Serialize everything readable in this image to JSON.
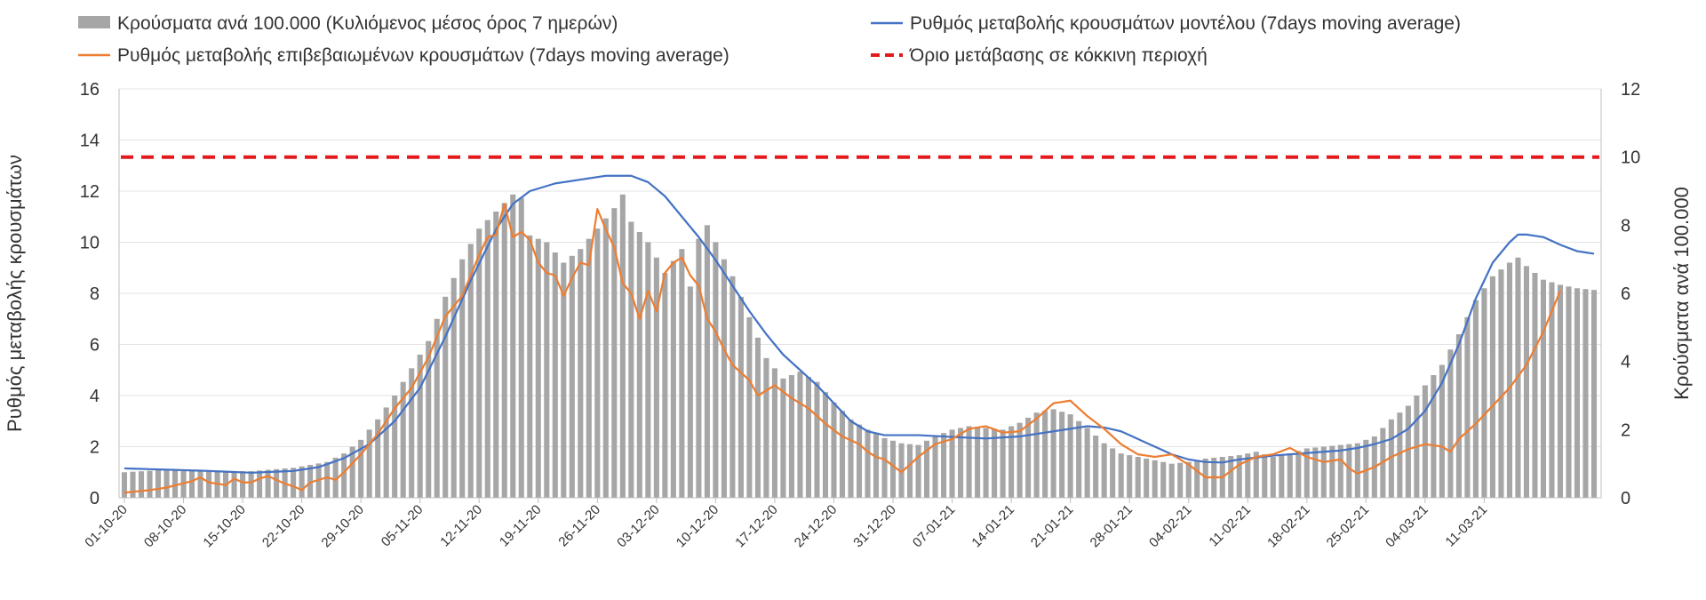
{
  "chart_data": {
    "type": "bar+line",
    "xlabel": "",
    "ylabel": "Ρυθμός μεταβολής κρουσμάτων",
    "y2label": "Κρούσματα ανά 100.000",
    "ylim": [
      0,
      16
    ],
    "y2lim": [
      0,
      12
    ],
    "y_ticks": [
      "0",
      "2",
      "4",
      "6",
      "8",
      "10",
      "12",
      "14",
      "16"
    ],
    "y2_ticks": [
      "0",
      "2",
      "4",
      "6",
      "8",
      "10",
      "12"
    ],
    "x_start": "2020-10-01",
    "x_tick_labels": [
      "01-10-20",
      "08-10-20",
      "15-10-20",
      "22-10-20",
      "29-10-20",
      "05-11-20",
      "12-11-20",
      "19-11-20",
      "26-11-20",
      "03-12-20",
      "10-12-20",
      "17-12-20",
      "24-12-20",
      "31-12-20",
      "07-01-21",
      "14-01-21",
      "21-01-21",
      "28-01-21",
      "04-02-21",
      "11-02-21",
      "18-02-21",
      "25-02-21",
      "04-03-21",
      "11-03-21"
    ],
    "grid": "horizontal",
    "legend_position": "top",
    "legend": [
      {
        "label": "Κρούσματα ανά 100.000 (Κυλιόμενος μέσος όρος 7 ημερών)",
        "type": "bar",
        "color": "#a6a6a6"
      },
      {
        "label": "Ρυθμός μεταβολής κρουσμάτων μοντέλου (7days moving average)",
        "type": "line",
        "color": "#4472c4"
      },
      {
        "label": "Ρυθμός μεταβολής επιβεβαιωμένων κρουσμάτων (7days moving average)",
        "type": "line",
        "color": "#ed7d31"
      },
      {
        "label": "Όριο μετάβασης σε κόκκινη περιοχή",
        "type": "dashed",
        "color": "#e31a1c"
      }
    ],
    "series": [
      {
        "name": "Κρούσματα ανά 100.000 (Κυλιόμενος μέσος όρος 7 ημερών)",
        "type": "bar",
        "axis": "right",
        "color": "#a6a6a6",
        "key_points": [
          [
            0,
            0.75
          ],
          [
            5,
            0.82
          ],
          [
            10,
            0.78
          ],
          [
            15,
            0.78
          ],
          [
            20,
            0.88
          ],
          [
            24,
            1.05
          ],
          [
            26,
            1.3
          ],
          [
            28,
            1.7
          ],
          [
            30,
            2.3
          ],
          [
            32,
            3.0
          ],
          [
            34,
            3.8
          ],
          [
            36,
            4.6
          ],
          [
            38,
            5.9
          ],
          [
            40,
            7.0
          ],
          [
            42,
            7.9
          ],
          [
            44,
            8.4
          ],
          [
            46,
            8.9
          ],
          [
            47,
            8.8
          ],
          [
            48,
            7.7
          ],
          [
            50,
            7.5
          ],
          [
            52,
            6.9
          ],
          [
            54,
            7.3
          ],
          [
            56,
            7.9
          ],
          [
            58,
            8.5
          ],
          [
            59,
            8.9
          ],
          [
            60,
            8.1
          ],
          [
            62,
            7.5
          ],
          [
            64,
            6.6
          ],
          [
            66,
            7.3
          ],
          [
            67,
            6.2
          ],
          [
            68,
            7.6
          ],
          [
            69,
            8.0
          ],
          [
            70,
            7.5
          ],
          [
            72,
            6.5
          ],
          [
            74,
            5.3
          ],
          [
            76,
            4.1
          ],
          [
            78,
            3.5
          ],
          [
            80,
            3.7
          ],
          [
            82,
            3.4
          ],
          [
            84,
            2.8
          ],
          [
            86,
            2.3
          ],
          [
            88,
            2.0
          ],
          [
            90,
            1.75
          ],
          [
            92,
            1.6
          ],
          [
            94,
            1.55
          ],
          [
            96,
            1.8
          ],
          [
            98,
            2.0
          ],
          [
            100,
            2.1
          ],
          [
            102,
            2.05
          ],
          [
            104,
            2.0
          ],
          [
            106,
            2.2
          ],
          [
            108,
            2.5
          ],
          [
            110,
            2.6
          ],
          [
            112,
            2.45
          ],
          [
            114,
            2.05
          ],
          [
            116,
            1.6
          ],
          [
            118,
            1.3
          ],
          [
            120,
            1.2
          ],
          [
            122,
            1.1
          ],
          [
            124,
            1.0
          ],
          [
            126,
            1.05
          ],
          [
            128,
            1.15
          ],
          [
            130,
            1.2
          ],
          [
            132,
            1.25
          ],
          [
            134,
            1.35
          ],
          [
            136,
            1.2
          ],
          [
            138,
            1.3
          ],
          [
            140,
            1.45
          ],
          [
            142,
            1.5
          ],
          [
            144,
            1.55
          ],
          [
            146,
            1.6
          ],
          [
            148,
            1.8
          ],
          [
            150,
            2.3
          ],
          [
            152,
            2.7
          ],
          [
            154,
            3.3
          ],
          [
            156,
            3.9
          ],
          [
            158,
            4.8
          ],
          [
            160,
            5.8
          ],
          [
            162,
            6.5
          ],
          [
            164,
            6.9
          ],
          [
            165,
            7.05
          ],
          [
            166,
            6.8
          ],
          [
            168,
            6.4
          ],
          [
            170,
            6.25
          ],
          [
            172,
            6.15
          ],
          [
            174,
            6.1
          ]
        ]
      },
      {
        "name": "Ρυθμός μεταβολής κρουσμάτων μοντέλου (7days moving average)",
        "type": "line",
        "axis": "left",
        "color": "#4472c4",
        "key_points": [
          [
            0,
            1.15
          ],
          [
            10,
            1.05
          ],
          [
            15,
            0.98
          ],
          [
            20,
            1.05
          ],
          [
            23,
            1.2
          ],
          [
            26,
            1.55
          ],
          [
            29,
            2.1
          ],
          [
            32,
            3.0
          ],
          [
            35,
            4.3
          ],
          [
            38,
            6.3
          ],
          [
            41,
            8.5
          ],
          [
            44,
            10.5
          ],
          [
            46,
            11.5
          ],
          [
            48,
            12.0
          ],
          [
            51,
            12.3
          ],
          [
            54,
            12.45
          ],
          [
            57,
            12.6
          ],
          [
            60,
            12.6
          ],
          [
            62,
            12.35
          ],
          [
            64,
            11.8
          ],
          [
            66,
            11.0
          ],
          [
            68,
            10.2
          ],
          [
            70,
            9.3
          ],
          [
            72,
            8.3
          ],
          [
            74,
            7.3
          ],
          [
            76,
            6.4
          ],
          [
            78,
            5.6
          ],
          [
            80,
            5.0
          ],
          [
            82,
            4.4
          ],
          [
            84,
            3.7
          ],
          [
            86,
            3.0
          ],
          [
            88,
            2.6
          ],
          [
            90,
            2.45
          ],
          [
            94,
            2.45
          ],
          [
            98,
            2.38
          ],
          [
            102,
            2.32
          ],
          [
            106,
            2.4
          ],
          [
            110,
            2.6
          ],
          [
            114,
            2.8
          ],
          [
            116,
            2.75
          ],
          [
            118,
            2.6
          ],
          [
            120,
            2.3
          ],
          [
            122,
            2.0
          ],
          [
            124,
            1.7
          ],
          [
            126,
            1.5
          ],
          [
            128,
            1.4
          ],
          [
            130,
            1.38
          ],
          [
            132,
            1.5
          ],
          [
            136,
            1.65
          ],
          [
            140,
            1.75
          ],
          [
            144,
            1.85
          ],
          [
            146,
            1.95
          ],
          [
            148,
            2.1
          ],
          [
            150,
            2.3
          ],
          [
            152,
            2.7
          ],
          [
            154,
            3.4
          ],
          [
            156,
            4.5
          ],
          [
            158,
            6.0
          ],
          [
            160,
            7.8
          ],
          [
            162,
            9.2
          ],
          [
            164,
            10.0
          ],
          [
            165,
            10.3
          ],
          [
            166,
            10.3
          ],
          [
            168,
            10.2
          ],
          [
            170,
            9.9
          ],
          [
            172,
            9.65
          ],
          [
            174,
            9.55
          ]
        ]
      },
      {
        "name": "Ρυθμός μεταβολής επιβεβαιωμένων κρουσμάτων (7days moving average)",
        "type": "line",
        "axis": "left",
        "color": "#ed7d31",
        "key_points": [
          [
            0,
            0.2
          ],
          [
            3,
            0.3
          ],
          [
            5,
            0.4
          ],
          [
            8,
            0.65
          ],
          [
            9,
            0.8
          ],
          [
            10,
            0.6
          ],
          [
            12,
            0.5
          ],
          [
            13,
            0.75
          ],
          [
            14,
            0.6
          ],
          [
            15,
            0.6
          ],
          [
            16,
            0.75
          ],
          [
            17,
            0.85
          ],
          [
            18,
            0.7
          ],
          [
            19,
            0.55
          ],
          [
            20,
            0.45
          ],
          [
            21,
            0.3
          ],
          [
            22,
            0.6
          ],
          [
            24,
            0.8
          ],
          [
            25,
            0.7
          ],
          [
            26,
            1.0
          ],
          [
            28,
            1.7
          ],
          [
            30,
            2.5
          ],
          [
            32,
            3.5
          ],
          [
            34,
            4.3
          ],
          [
            36,
            5.5
          ],
          [
            38,
            7.1
          ],
          [
            40,
            7.9
          ],
          [
            42,
            9.5
          ],
          [
            43,
            10.2
          ],
          [
            44,
            10.3
          ],
          [
            45,
            11.5
          ],
          [
            46,
            10.2
          ],
          [
            47,
            10.4
          ],
          [
            48,
            10.1
          ],
          [
            49,
            9.2
          ],
          [
            50,
            8.8
          ],
          [
            51,
            8.7
          ],
          [
            52,
            7.9
          ],
          [
            53,
            8.6
          ],
          [
            54,
            9.2
          ],
          [
            55,
            9.1
          ],
          [
            56,
            11.3
          ],
          [
            57,
            10.5
          ],
          [
            58,
            9.8
          ],
          [
            59,
            8.4
          ],
          [
            60,
            8.0
          ],
          [
            61,
            7.0
          ],
          [
            62,
            8.1
          ],
          [
            63,
            7.3
          ],
          [
            64,
            8.8
          ],
          [
            65,
            9.2
          ],
          [
            66,
            9.4
          ],
          [
            67,
            8.7
          ],
          [
            68,
            8.3
          ],
          [
            69,
            7.0
          ],
          [
            70,
            6.5
          ],
          [
            71,
            5.8
          ],
          [
            72,
            5.2
          ],
          [
            74,
            4.6
          ],
          [
            75,
            4.0
          ],
          [
            77,
            4.4
          ],
          [
            79,
            3.9
          ],
          [
            81,
            3.5
          ],
          [
            83,
            2.9
          ],
          [
            85,
            2.4
          ],
          [
            87,
            2.1
          ],
          [
            88,
            1.8
          ],
          [
            89,
            1.6
          ],
          [
            90,
            1.5
          ],
          [
            92,
            1.0
          ],
          [
            94,
            1.6
          ],
          [
            96,
            2.1
          ],
          [
            98,
            2.3
          ],
          [
            100,
            2.7
          ],
          [
            102,
            2.8
          ],
          [
            104,
            2.55
          ],
          [
            106,
            2.6
          ],
          [
            108,
            3.1
          ],
          [
            110,
            3.7
          ],
          [
            112,
            3.8
          ],
          [
            114,
            3.2
          ],
          [
            116,
            2.7
          ],
          [
            118,
            2.1
          ],
          [
            120,
            1.7
          ],
          [
            122,
            1.6
          ],
          [
            124,
            1.7
          ],
          [
            126,
            1.3
          ],
          [
            128,
            0.8
          ],
          [
            130,
            0.8
          ],
          [
            132,
            1.3
          ],
          [
            134,
            1.6
          ],
          [
            136,
            1.7
          ],
          [
            138,
            1.95
          ],
          [
            140,
            1.6
          ],
          [
            142,
            1.4
          ],
          [
            144,
            1.5
          ],
          [
            145,
            1.15
          ],
          [
            146,
            0.95
          ],
          [
            148,
            1.2
          ],
          [
            150,
            1.6
          ],
          [
            152,
            1.9
          ],
          [
            154,
            2.1
          ],
          [
            156,
            2.0
          ],
          [
            157,
            1.8
          ],
          [
            158,
            2.3
          ],
          [
            160,
            2.9
          ],
          [
            162,
            3.6
          ],
          [
            164,
            4.3
          ],
          [
            166,
            5.2
          ],
          [
            168,
            6.5
          ],
          [
            170,
            8.1
          ]
        ]
      },
      {
        "name": "Όριο μετάβασης σε κόκκινη περιοχή",
        "type": "line",
        "style": "dashed",
        "axis": "left",
        "color": "#e31a1c",
        "value": 13.33
      }
    ]
  }
}
